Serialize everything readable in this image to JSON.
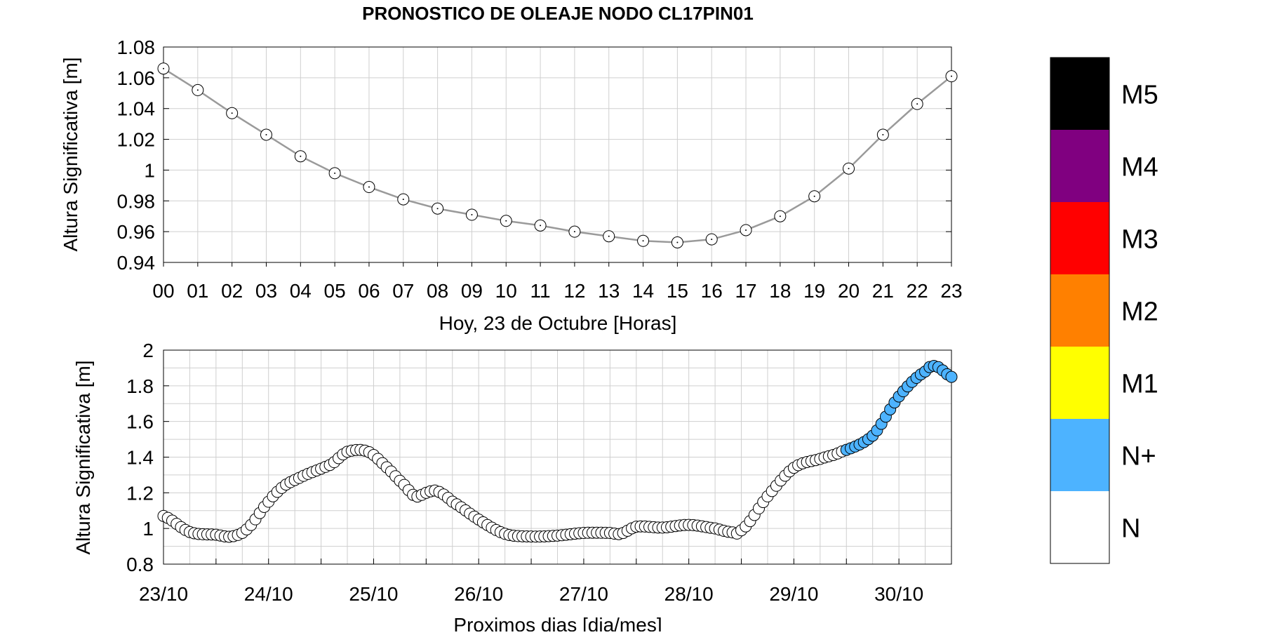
{
  "title": "PRONOSTICO DE OLEAJE NODO CL17PIN01",
  "colors": {
    "grid": "#cfcfcf",
    "line": "#9a9a9a",
    "marker_n": "#ffffff",
    "marker_nplus": "#4db3ff"
  },
  "chart_data": [
    {
      "type": "line",
      "xlabel": "Hoy, 23 de   Octubre   [Horas]",
      "ylabel": "Altura Significativa [m]",
      "ylim": [
        0.94,
        1.08
      ],
      "yticks": [
        "0.94",
        "0.96",
        "0.98",
        "1",
        "1.02",
        "1.04",
        "1.06",
        "1.08"
      ],
      "categories": [
        "00",
        "01",
        "02",
        "03",
        "04",
        "05",
        "06",
        "07",
        "08",
        "09",
        "10",
        "11",
        "12",
        "13",
        "14",
        "15",
        "16",
        "17",
        "18",
        "19",
        "20",
        "21",
        "22",
        "23"
      ],
      "values": [
        1.066,
        1.052,
        1.037,
        1.023,
        1.009,
        0.998,
        0.989,
        0.981,
        0.975,
        0.971,
        0.967,
        0.964,
        0.96,
        0.957,
        0.954,
        0.953,
        0.955,
        0.961,
        0.97,
        0.983,
        1.001,
        1.023,
        1.043,
        1.061
      ],
      "grid": true
    },
    {
      "type": "scatter",
      "xlabel": "Proximos dias [dia/mes]",
      "ylabel": "Altura Significativa [m]",
      "ylim": [
        0.8,
        2
      ],
      "yticks": [
        "0.8",
        "1",
        "1.2",
        "1.4",
        "1.6",
        "1.8",
        "2"
      ],
      "xticks": [
        "23/10",
        "24/10",
        "25/10",
        "26/10",
        "27/10",
        "28/10",
        "29/10",
        "30/10"
      ],
      "xlim_days": [
        0,
        7.5
      ],
      "anchors": [
        [
          0.0,
          1.07
        ],
        [
          0.25,
          0.98
        ],
        [
          0.5,
          0.965
        ],
        [
          0.65,
          0.955
        ],
        [
          0.8,
          1.0
        ],
        [
          1.0,
          1.15
        ],
        [
          1.15,
          1.24
        ],
        [
          1.35,
          1.3
        ],
        [
          1.6,
          1.36
        ],
        [
          1.75,
          1.43
        ],
        [
          1.95,
          1.43
        ],
        [
          2.15,
          1.33
        ],
        [
          2.3,
          1.24
        ],
        [
          2.4,
          1.18
        ],
        [
          2.5,
          1.2
        ],
        [
          2.6,
          1.21
        ],
        [
          2.75,
          1.15
        ],
        [
          3.0,
          1.05
        ],
        [
          3.25,
          0.97
        ],
        [
          3.5,
          0.955
        ],
        [
          3.75,
          0.96
        ],
        [
          4.0,
          0.975
        ],
        [
          4.25,
          0.975
        ],
        [
          4.35,
          0.97
        ],
        [
          4.5,
          1.01
        ],
        [
          4.75,
          1.005
        ],
        [
          5.0,
          1.02
        ],
        [
          5.25,
          1.0
        ],
        [
          5.4,
          0.98
        ],
        [
          5.5,
          0.99
        ],
        [
          5.75,
          1.18
        ],
        [
          6.0,
          1.34
        ],
        [
          6.25,
          1.39
        ],
        [
          6.45,
          1.43
        ],
        [
          6.75,
          1.52
        ],
        [
          7.0,
          1.74
        ],
        [
          7.25,
          1.88
        ],
        [
          7.35,
          1.91
        ],
        [
          7.5,
          1.85
        ]
      ],
      "threshold_nplus_days": 6.5,
      "grid": true
    }
  ],
  "legend": {
    "items": [
      {
        "label": "M5",
        "color": "#000000"
      },
      {
        "label": "M4",
        "color": "#800080"
      },
      {
        "label": "M3",
        "color": "#ff0000"
      },
      {
        "label": "M2",
        "color": "#ff8000"
      },
      {
        "label": "M1",
        "color": "#ffff00"
      },
      {
        "label": "N+",
        "color": "#4db3ff"
      },
      {
        "label": "N",
        "color": "#ffffff"
      }
    ]
  }
}
